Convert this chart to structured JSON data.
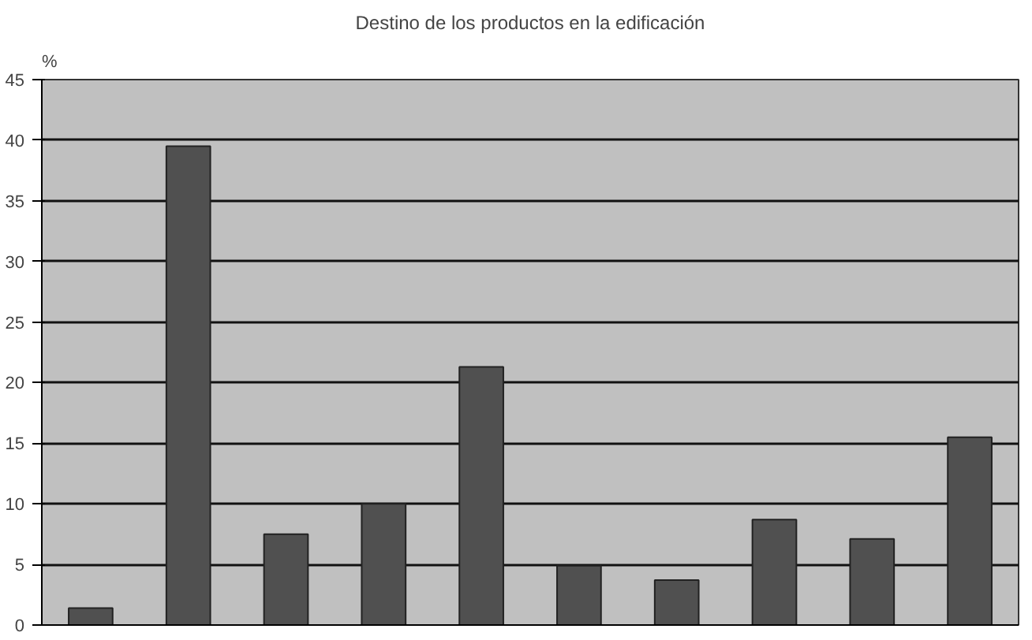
{
  "chart_data": {
    "type": "bar",
    "title": "Destino de los productos en la edificación",
    "ylabel": "%",
    "categories": [
      null,
      null,
      null,
      null,
      null,
      null,
      null,
      null,
      null,
      null
    ],
    "values": [
      1.4,
      39.5,
      7.5,
      10,
      21.3,
      4.9,
      3.7,
      8.7,
      7.1,
      15.5
    ],
    "color": "#505050",
    "ylim": [
      0,
      45
    ],
    "yticks": [
      0,
      5,
      10,
      15,
      20,
      25,
      30,
      35,
      40,
      45
    ],
    "grid": "y"
  }
}
